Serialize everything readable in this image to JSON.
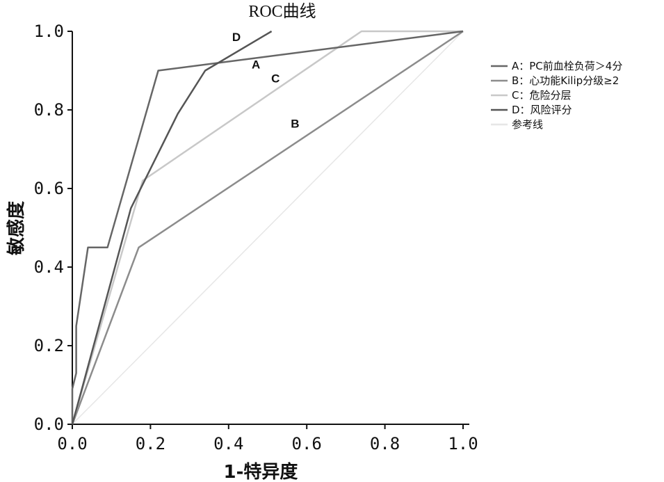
{
  "chart_data": {
    "type": "line",
    "title": "ROC曲线",
    "xlabel": "1-特异度",
    "ylabel": "敏感度",
    "xlim": [
      0,
      1
    ],
    "ylim": [
      0,
      1
    ],
    "x_ticks": [
      "0.0",
      "0.2",
      "0.4",
      "0.6",
      "0.8",
      "1.0"
    ],
    "y_ticks": [
      "0.0",
      "0.2",
      "0.4",
      "0.6",
      "0.8",
      "1.0"
    ],
    "grid": false,
    "legend_position": "right",
    "series": [
      {
        "name": "A：PC前血栓负荷＞4分",
        "label": "A",
        "color": "#666666",
        "points": [
          [
            0,
            0
          ],
          [
            0,
            0.09
          ],
          [
            0.01,
            0.13
          ],
          [
            0.01,
            0.25
          ],
          [
            0.04,
            0.45
          ],
          [
            0.09,
            0.45
          ],
          [
            0.22,
            0.9
          ],
          [
            1,
            1
          ]
        ]
      },
      {
        "name": "B：心功能Kilip分级≥2",
        "label": "B",
        "color": "#8c8c8c",
        "points": [
          [
            0,
            0
          ],
          [
            0.17,
            0.45
          ],
          [
            1,
            1
          ]
        ]
      },
      {
        "name": "C：危险分层",
        "label": "C",
        "color": "#c8c8c8",
        "points": [
          [
            0,
            0
          ],
          [
            0.18,
            0.62
          ],
          [
            0.74,
            1
          ],
          [
            1,
            1
          ]
        ]
      },
      {
        "name": "D：风险评分",
        "label": "D",
        "color": "#555555",
        "points": [
          [
            0,
            0
          ],
          [
            0.15,
            0.55
          ],
          [
            0.27,
            0.79
          ],
          [
            0.34,
            0.9
          ],
          [
            0.51,
            1
          ]
        ]
      },
      {
        "name": "参考线",
        "color": "#e6e6e6",
        "points": [
          [
            0,
            0
          ],
          [
            1,
            1
          ]
        ]
      }
    ],
    "annotations": [
      {
        "text": "D",
        "x": 0.42,
        "y": 0.975
      },
      {
        "text": "A",
        "x": 0.47,
        "y": 0.905
      },
      {
        "text": "C",
        "x": 0.52,
        "y": 0.87
      },
      {
        "text": "B",
        "x": 0.57,
        "y": 0.755
      }
    ]
  }
}
